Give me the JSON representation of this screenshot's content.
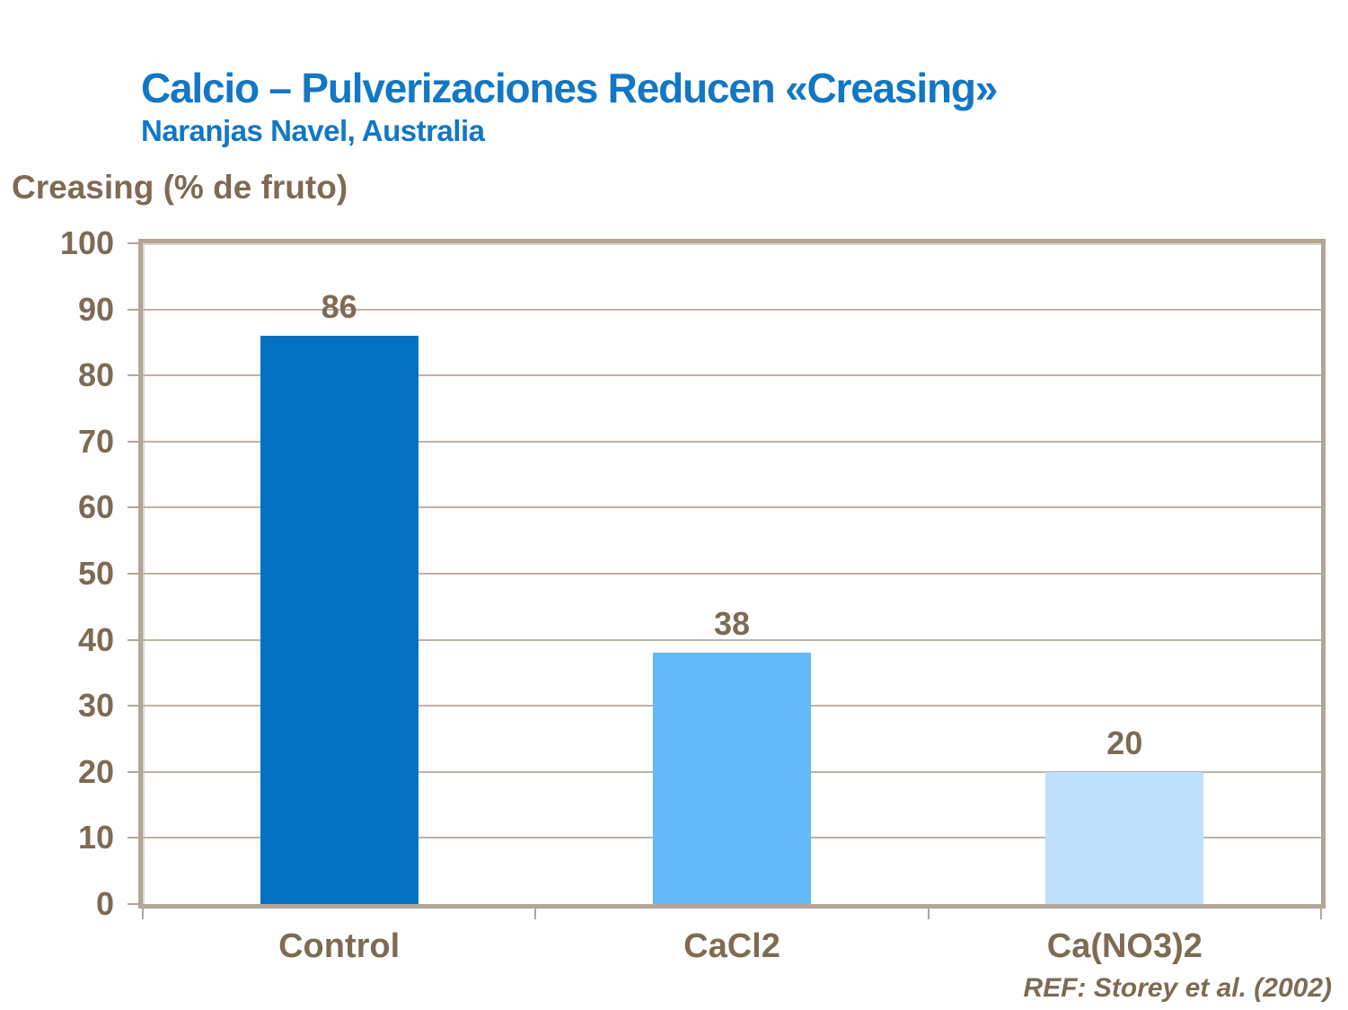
{
  "slide": {
    "title": "Calcio – Pulverizaciones Reducen «Creasing»",
    "subtitle": "Naranjas Navel, Australia",
    "reference": "REF: Storey et al. (2002)"
  },
  "colors": {
    "title_blue": "#1277C5",
    "chart_text_brown": "#7D6B54",
    "frame_tan": "#B1A799",
    "gridline_tan": "#BDB4A7",
    "background": "#FFFFFF"
  },
  "chart_data": {
    "type": "bar",
    "title": "Calcio – Pulverizaciones Reducen «Creasing»",
    "subtitle": "Naranjas Navel, Australia",
    "ylabel": "Creasing (% de fruto)",
    "xlabel": "",
    "categories": [
      "Control",
      "CaCl2",
      "Ca(NO3)2"
    ],
    "values": [
      86,
      38,
      20
    ],
    "data_labels": [
      "86",
      "38",
      "20"
    ],
    "bar_colors": [
      "#0571C1",
      "#63BAF6",
      "#BFE0FA"
    ],
    "ylim": [
      0,
      100
    ],
    "ytick_step": 10,
    "ytick_labels": [
      "0",
      "10",
      "20",
      "30",
      "40",
      "50",
      "60",
      "70",
      "80",
      "90",
      "100"
    ],
    "grid": "horizontal",
    "legend": "none",
    "annotation": "REF: Storey et al. (2002)"
  }
}
